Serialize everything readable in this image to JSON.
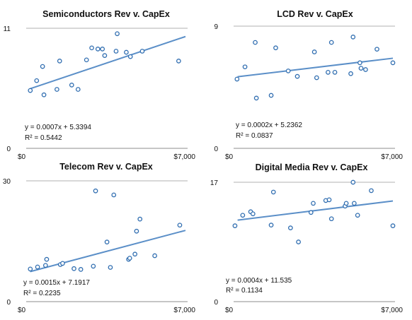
{
  "chart_data": [
    {
      "type": "scatter",
      "title": "Semiconductors Rev v. CapEx",
      "x_tick_labels": [
        "$0",
        "$7,000"
      ],
      "y_tick_labels": [
        "0",
        "11"
      ],
      "xlim": [
        0,
        7000
      ],
      "ylim": [
        0,
        11
      ],
      "grid": true,
      "trendline": {
        "slope": 0.0007,
        "intercept": 5.3394,
        "equation": "y = 0.0007x + 5.3394",
        "r2_label": "R² = 0.5442"
      },
      "points": [
        {
          "x": 180,
          "y": 5.3
        },
        {
          "x": 460,
          "y": 6.2
        },
        {
          "x": 720,
          "y": 7.5
        },
        {
          "x": 780,
          "y": 4.9
        },
        {
          "x": 1350,
          "y": 5.4
        },
        {
          "x": 1470,
          "y": 8.0
        },
        {
          "x": 2000,
          "y": 5.8
        },
        {
          "x": 2280,
          "y": 5.4
        },
        {
          "x": 2650,
          "y": 8.1
        },
        {
          "x": 2880,
          "y": 9.2
        },
        {
          "x": 3150,
          "y": 9.1
        },
        {
          "x": 3350,
          "y": 9.1
        },
        {
          "x": 3450,
          "y": 8.5
        },
        {
          "x": 3950,
          "y": 8.9
        },
        {
          "x": 4000,
          "y": 10.5
        },
        {
          "x": 4400,
          "y": 8.8
        },
        {
          "x": 4580,
          "y": 8.4
        },
        {
          "x": 5100,
          "y": 8.9
        },
        {
          "x": 6700,
          "y": 8.0
        }
      ]
    },
    {
      "type": "scatter",
      "title": "LCD Rev v. CapEx",
      "x_tick_labels": [
        "$0",
        "$7,000"
      ],
      "y_tick_labels": [
        "0",
        "9"
      ],
      "xlim": [
        0,
        7000
      ],
      "ylim": [
        0,
        9
      ],
      "grid": true,
      "trendline": {
        "slope": 0.0002,
        "intercept": 5.2362,
        "equation": "y = 0.0002x + 5.2362",
        "r2_label": "R² = 0.0837"
      },
      "points": [
        {
          "x": 150,
          "y": 5.1
        },
        {
          "x": 500,
          "y": 6.0
        },
        {
          "x": 950,
          "y": 7.8
        },
        {
          "x": 1000,
          "y": 3.7
        },
        {
          "x": 1650,
          "y": 3.9
        },
        {
          "x": 1850,
          "y": 7.4
        },
        {
          "x": 2400,
          "y": 5.7
        },
        {
          "x": 2800,
          "y": 5.3
        },
        {
          "x": 3550,
          "y": 7.1
        },
        {
          "x": 3650,
          "y": 5.2
        },
        {
          "x": 4150,
          "y": 5.6
        },
        {
          "x": 4300,
          "y": 7.8
        },
        {
          "x": 4450,
          "y": 5.6
        },
        {
          "x": 5150,
          "y": 5.5
        },
        {
          "x": 5250,
          "y": 8.2
        },
        {
          "x": 5550,
          "y": 6.3
        },
        {
          "x": 5600,
          "y": 5.9
        },
        {
          "x": 5800,
          "y": 5.8
        },
        {
          "x": 6300,
          "y": 7.3
        },
        {
          "x": 7000,
          "y": 6.3
        }
      ]
    },
    {
      "type": "scatter",
      "title": "Telecom Rev v. CapEx",
      "x_tick_labels": [
        "$0",
        "$7,000"
      ],
      "y_tick_labels": [
        "0",
        "30"
      ],
      "xlim": [
        0,
        7000
      ],
      "ylim": [
        0,
        30
      ],
      "grid": true,
      "trendline": {
        "slope": 0.0015,
        "intercept": 7.1917,
        "equation": "y = 0.0015x + 7.1917",
        "r2_label": "R² = 0.2235"
      },
      "points": [
        {
          "x": 180,
          "y": 8.1
        },
        {
          "x": 500,
          "y": 8.6
        },
        {
          "x": 850,
          "y": 9.0
        },
        {
          "x": 900,
          "y": 10.5
        },
        {
          "x": 1500,
          "y": 9.2
        },
        {
          "x": 1600,
          "y": 9.5
        },
        {
          "x": 2100,
          "y": 8.2
        },
        {
          "x": 2400,
          "y": 8.0
        },
        {
          "x": 2950,
          "y": 8.8
        },
        {
          "x": 3050,
          "y": 27.5
        },
        {
          "x": 3550,
          "y": 14.8
        },
        {
          "x": 3700,
          "y": 8.5
        },
        {
          "x": 3850,
          "y": 26.5
        },
        {
          "x": 4500,
          "y": 10.5
        },
        {
          "x": 4550,
          "y": 10.8
        },
        {
          "x": 4780,
          "y": 11.8
        },
        {
          "x": 4850,
          "y": 17.5
        },
        {
          "x": 5000,
          "y": 20.5
        },
        {
          "x": 5650,
          "y": 11.4
        },
        {
          "x": 6750,
          "y": 19.0
        }
      ]
    },
    {
      "type": "scatter",
      "title": "Digital Media Rev v. CapEx",
      "x_tick_labels": [
        "$0",
        "$7,000"
      ],
      "y_tick_labels": [
        "0",
        "17"
      ],
      "xlim": [
        0,
        7000
      ],
      "ylim": [
        0,
        17
      ],
      "grid": true,
      "trendline": {
        "slope": 0.0004,
        "intercept": 11.535,
        "equation": "y = 0.0004x + 11.535",
        "r2_label": "R² = 0.1134"
      },
      "points": [
        {
          "x": 60,
          "y": 10.8
        },
        {
          "x": 400,
          "y": 12.3
        },
        {
          "x": 750,
          "y": 12.8
        },
        {
          "x": 850,
          "y": 12.5
        },
        {
          "x": 1650,
          "y": 10.9
        },
        {
          "x": 1750,
          "y": 15.6
        },
        {
          "x": 2500,
          "y": 10.5
        },
        {
          "x": 2850,
          "y": 8.5
        },
        {
          "x": 3400,
          "y": 12.7
        },
        {
          "x": 3500,
          "y": 14.0
        },
        {
          "x": 4050,
          "y": 14.4
        },
        {
          "x": 4200,
          "y": 14.5
        },
        {
          "x": 4300,
          "y": 11.8
        },
        {
          "x": 4900,
          "y": 13.6
        },
        {
          "x": 4950,
          "y": 14.0
        },
        {
          "x": 5250,
          "y": 17.0
        },
        {
          "x": 5300,
          "y": 14.0
        },
        {
          "x": 5450,
          "y": 12.3
        },
        {
          "x": 6050,
          "y": 15.8
        },
        {
          "x": 7000,
          "y": 10.8
        }
      ]
    }
  ]
}
